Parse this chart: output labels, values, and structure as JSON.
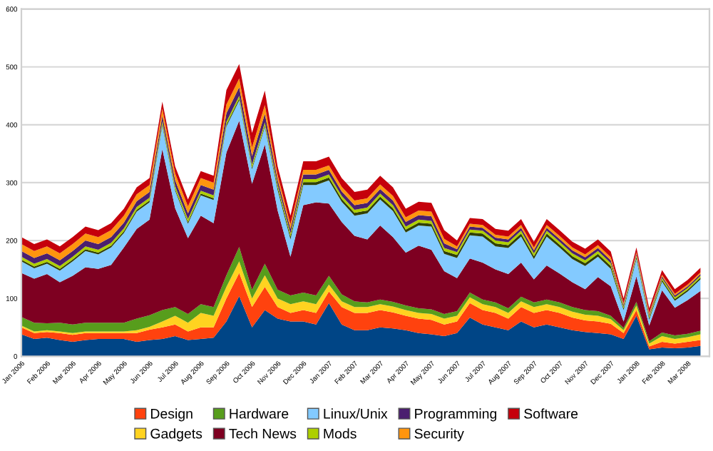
{
  "chart_data": {
    "type": "area",
    "stacked": true,
    "categories": [
      "Jan 2006",
      null,
      "Feb 2006",
      null,
      "Mar 2006",
      null,
      "Apr 2006",
      null,
      "May 2006",
      null,
      "Jun 2006",
      null,
      "Jul 2006",
      null,
      "Aug 2006",
      null,
      "Sep 2006",
      null,
      "Oct 2006",
      null,
      "Nov 2006",
      null,
      "Dec 2006",
      null,
      "Jan 2007",
      null,
      "Feb 2007",
      null,
      "Mar 2007",
      null,
      "Apr 2007",
      null,
      "May 2007",
      null,
      "Jun 2007",
      null,
      "Jul 2007",
      null,
      "Aug 2007",
      null,
      "Sep 2007",
      null,
      "Oct 2007",
      null,
      "Nov 2007",
      null,
      "Dec 2007",
      null,
      "Jan 2008",
      null,
      "Feb 2008",
      null,
      "Mar 2008",
      null
    ],
    "series": [
      {
        "color": "#004586",
        "values": [
          38,
          30,
          32,
          28,
          25,
          28,
          30,
          30,
          30,
          25,
          28,
          30,
          35,
          28,
          30,
          32,
          60,
          104,
          50,
          80,
          65,
          60,
          60,
          55,
          92,
          55,
          45,
          45,
          50,
          48,
          45,
          40,
          38,
          35,
          40,
          67,
          55,
          50,
          45,
          60,
          50,
          55,
          50,
          45,
          42,
          40,
          38,
          30,
          70,
          12,
          15,
          14,
          15,
          18
        ]
      },
      {
        "name": "Design",
        "color": "#ff420e",
        "values": [
          12,
          10,
          10,
          12,
          12,
          12,
          10,
          10,
          10,
          15,
          18,
          20,
          20,
          15,
          20,
          18,
          40,
          40,
          35,
          40,
          20,
          15,
          20,
          20,
          20,
          30,
          30,
          30,
          30,
          28,
          25,
          25,
          25,
          20,
          20,
          25,
          25,
          25,
          20,
          25,
          25,
          25,
          25,
          22,
          20,
          20,
          18,
          10,
          10,
          5,
          10,
          8,
          10,
          10
        ]
      },
      {
        "name": "Gadgets",
        "color": "#ffd320",
        "values": [
          3,
          3,
          3,
          3,
          3,
          3,
          3,
          3,
          3,
          5,
          5,
          10,
          15,
          15,
          25,
          20,
          20,
          20,
          15,
          20,
          15,
          15,
          15,
          15,
          12,
          10,
          10,
          10,
          10,
          10,
          10,
          10,
          10,
          10,
          10,
          10,
          10,
          10,
          10,
          10,
          10,
          10,
          10,
          10,
          10,
          10,
          8,
          5,
          8,
          5,
          10,
          8,
          8,
          10
        ]
      },
      {
        "name": "Hardware",
        "color": "#579d1c",
        "values": [
          15,
          15,
          12,
          15,
          15,
          15,
          15,
          15,
          15,
          20,
          20,
          20,
          15,
          15,
          15,
          15,
          20,
          25,
          15,
          20,
          15,
          15,
          15,
          15,
          15,
          12,
          10,
          8,
          8,
          8,
          8,
          8,
          8,
          8,
          8,
          8,
          8,
          8,
          8,
          8,
          8,
          8,
          8,
          8,
          8,
          8,
          6,
          4,
          6,
          4,
          6,
          6,
          6,
          6
        ]
      },
      {
        "name": "Tech News",
        "color": "#7e0021",
        "values": [
          76,
          76,
          85,
          70,
          84,
          96,
          93,
          100,
          130,
          155,
          165,
          278,
          171,
          131,
          153,
          145,
          212,
          218,
          183,
          206,
          137,
          67,
          151,
          161,
          125,
          125,
          113,
          109,
          128,
          112,
          91,
          108,
          103,
          74,
          57,
          59,
          64,
          57,
          59,
          59,
          40,
          59,
          50,
          43,
          36,
          59,
          51,
          11,
          44,
          27,
          73,
          48,
          58,
          69
        ]
      },
      {
        "name": "Linux/Unix",
        "color": "#83caff",
        "values": [
          20,
          18,
          18,
          20,
          25,
          28,
          25,
          30,
          25,
          30,
          30,
          40,
          30,
          25,
          35,
          40,
          45,
          35,
          25,
          30,
          35,
          30,
          35,
          30,
          40,
          35,
          35,
          45,
          45,
          45,
          35,
          35,
          40,
          30,
          35,
          40,
          45,
          40,
          45,
          45,
          35,
          50,
          45,
          40,
          40,
          35,
          30,
          20,
          30,
          10,
          15,
          12,
          15,
          20
        ]
      },
      {
        "color": "#314004",
        "values": [
          3,
          3,
          3,
          3,
          3,
          3,
          3,
          3,
          3,
          3,
          3,
          3,
          3,
          3,
          3,
          3,
          3,
          3,
          3,
          3,
          5,
          5,
          5,
          5,
          5,
          5,
          5,
          5,
          5,
          5,
          5,
          5,
          5,
          5,
          5,
          5,
          5,
          5,
          5,
          5,
          5,
          5,
          5,
          5,
          5,
          5,
          5,
          3,
          3,
          3,
          3,
          3,
          3,
          3
        ]
      },
      {
        "name": "Mods",
        "color": "#aecf00",
        "values": [
          5,
          5,
          5,
          5,
          5,
          5,
          5,
          5,
          5,
          5,
          5,
          5,
          5,
          5,
          5,
          5,
          5,
          5,
          5,
          5,
          5,
          5,
          5,
          5,
          5,
          5,
          5,
          5,
          5,
          5,
          5,
          5,
          5,
          5,
          5,
          5,
          5,
          5,
          5,
          5,
          5,
          5,
          5,
          5,
          5,
          5,
          5,
          3,
          3,
          3,
          3,
          3,
          3,
          3
        ]
      },
      {
        "name": "Programming",
        "color": "#4b1f6f",
        "values": [
          10,
          10,
          10,
          10,
          10,
          10,
          10,
          10,
          10,
          10,
          10,
          10,
          10,
          10,
          10,
          10,
          15,
          15,
          15,
          15,
          8,
          8,
          8,
          8,
          8,
          8,
          8,
          8,
          8,
          8,
          8,
          8,
          8,
          8,
          5,
          5,
          5,
          5,
          5,
          5,
          5,
          5,
          5,
          5,
          5,
          5,
          5,
          3,
          3,
          3,
          3,
          3,
          3,
          3
        ]
      },
      {
        "name": "Security",
        "color": "#ff950e",
        "values": [
          12,
          12,
          12,
          12,
          12,
          12,
          12,
          12,
          12,
          12,
          12,
          12,
          12,
          12,
          12,
          12,
          15,
          15,
          15,
          15,
          8,
          8,
          8,
          8,
          8,
          8,
          8,
          8,
          8,
          8,
          8,
          8,
          8,
          8,
          5,
          5,
          5,
          5,
          5,
          5,
          5,
          5,
          5,
          5,
          5,
          5,
          5,
          3,
          3,
          3,
          3,
          3,
          3,
          3
        ]
      },
      {
        "name": "Software",
        "color": "#c5000b",
        "values": [
          12,
          12,
          12,
          12,
          12,
          12,
          12,
          12,
          12,
          12,
          12,
          12,
          12,
          12,
          12,
          12,
          25,
          25,
          25,
          25,
          15,
          15,
          15,
          15,
          15,
          15,
          15,
          15,
          15,
          15,
          15,
          15,
          15,
          15,
          10,
          10,
          10,
          10,
          10,
          10,
          10,
          10,
          10,
          10,
          10,
          10,
          10,
          8,
          8,
          8,
          8,
          8,
          8,
          8
        ]
      }
    ],
    "ylim": [
      0,
      600
    ],
    "yticks": [
      0,
      100,
      200,
      300,
      400,
      500,
      600
    ],
    "grid": "y",
    "legend": "bottom"
  }
}
